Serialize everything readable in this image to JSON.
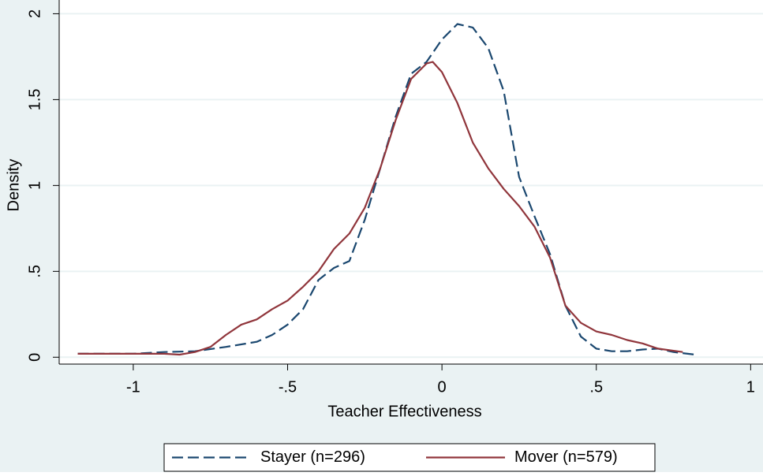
{
  "chart_data": {
    "type": "line",
    "x_label": "Teacher Effectiveness",
    "y_label": "Density",
    "xlim": [
      -1.24,
      1.04
    ],
    "ylim": [
      -0.04,
      2.08
    ],
    "xticks": [
      -1,
      {
        "value": -0.5,
        "label": "-.5"
      },
      0,
      {
        "value": 0.5,
        "label": ".5"
      },
      1
    ],
    "yticks": [
      0,
      {
        "value": 0.5,
        "label": ".5"
      },
      1,
      1.5,
      2
    ],
    "grid": true,
    "legend": "bottom",
    "series": [
      {
        "name": "Stayer (n=296)",
        "color": "#1a476f",
        "dash": true,
        "x": [
          -1.18,
          -1.0,
          -0.9,
          -0.8,
          -0.7,
          -0.6,
          -0.55,
          -0.5,
          -0.45,
          -0.4,
          -0.35,
          -0.3,
          -0.25,
          -0.2,
          -0.15,
          -0.1,
          -0.05,
          0,
          0.05,
          0.1,
          0.15,
          0.2,
          0.25,
          0.3,
          0.35,
          0.4,
          0.45,
          0.5,
          0.55,
          0.6,
          0.65,
          0.7,
          0.75,
          0.82
        ],
        "values": [
          0.02,
          0.02,
          0.03,
          0.035,
          0.06,
          0.09,
          0.13,
          0.19,
          0.28,
          0.45,
          0.52,
          0.56,
          0.8,
          1.1,
          1.4,
          1.65,
          1.72,
          1.85,
          1.94,
          1.92,
          1.8,
          1.55,
          1.05,
          0.82,
          0.6,
          0.3,
          0.12,
          0.05,
          0.035,
          0.035,
          0.045,
          0.05,
          0.03,
          0.015
        ]
      },
      {
        "name": "Mover (n=579)",
        "color": "#90353b",
        "dash": false,
        "x": [
          -1.18,
          -1.0,
          -0.9,
          -0.85,
          -0.8,
          -0.75,
          -0.7,
          -0.65,
          -0.6,
          -0.55,
          -0.5,
          -0.45,
          -0.4,
          -0.35,
          -0.3,
          -0.25,
          -0.2,
          -0.15,
          -0.1,
          -0.05,
          -0.03,
          0,
          0.05,
          0.1,
          0.15,
          0.2,
          0.25,
          0.3,
          0.35,
          0.4,
          0.45,
          0.5,
          0.55,
          0.6,
          0.65,
          0.7,
          0.78
        ],
        "values": [
          0.02,
          0.02,
          0.02,
          0.015,
          0.03,
          0.06,
          0.13,
          0.19,
          0.22,
          0.28,
          0.33,
          0.41,
          0.5,
          0.63,
          0.72,
          0.87,
          1.1,
          1.38,
          1.62,
          1.71,
          1.72,
          1.66,
          1.48,
          1.25,
          1.1,
          0.98,
          0.88,
          0.76,
          0.58,
          0.3,
          0.2,
          0.15,
          0.13,
          0.1,
          0.08,
          0.05,
          0.03
        ]
      }
    ]
  }
}
